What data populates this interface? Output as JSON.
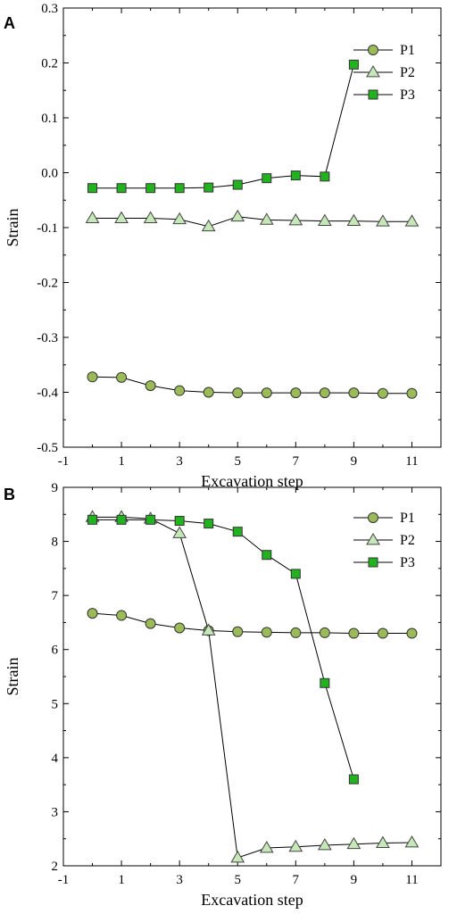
{
  "chart_data": [
    {
      "panel": "A",
      "type": "line",
      "xlabel": "Excavation step",
      "ylabel": "Strain",
      "xlim": [
        -1,
        12
      ],
      "ylim": [
        -0.5,
        0.3
      ],
      "xticks": [
        -1,
        1,
        3,
        5,
        7,
        9,
        11
      ],
      "yticks": [
        -0.5,
        -0.4,
        -0.3,
        -0.2,
        -0.1,
        0.0,
        0.1,
        0.2,
        0.3
      ],
      "ytick_labels": [
        "-0.5",
        "-0.4",
        "-0.3",
        "-0.2",
        "-0.1",
        "0.0",
        "0.1",
        "0.2",
        "0.3"
      ],
      "legend_position": "top-right",
      "series": [
        {
          "name": "P1",
          "marker": "circle",
          "color": "#9BBB59",
          "x": [
            0,
            1,
            2,
            3,
            4,
            5,
            6,
            7,
            8,
            9,
            10,
            11
          ],
          "y": [
            -0.372,
            -0.373,
            -0.388,
            -0.397,
            -0.4,
            -0.401,
            -0.401,
            -0.401,
            -0.401,
            -0.401,
            -0.402,
            -0.402
          ]
        },
        {
          "name": "P2",
          "marker": "triangle",
          "color": "#C6E7B8",
          "x": [
            0,
            1,
            2,
            3,
            4,
            5,
            6,
            7,
            8,
            9,
            10,
            11
          ],
          "y": [
            -0.083,
            -0.083,
            -0.083,
            -0.085,
            -0.098,
            -0.08,
            -0.086,
            -0.087,
            -0.088,
            -0.088,
            -0.089,
            -0.089
          ]
        },
        {
          "name": "P3",
          "marker": "square",
          "color": "#22B21F",
          "x": [
            0,
            1,
            2,
            3,
            4,
            5,
            6,
            7,
            8,
            9
          ],
          "y": [
            -0.028,
            -0.028,
            -0.028,
            -0.028,
            -0.027,
            -0.022,
            -0.01,
            -0.005,
            -0.007,
            0.197
          ]
        }
      ]
    },
    {
      "panel": "B",
      "type": "line",
      "xlabel": "Excavation step",
      "ylabel": "Strain",
      "xlim": [
        -1,
        12
      ],
      "ylim": [
        2,
        9
      ],
      "xticks": [
        -1,
        1,
        3,
        5,
        7,
        9,
        11
      ],
      "yticks": [
        2,
        3,
        4,
        5,
        6,
        7,
        8,
        9
      ],
      "ytick_labels": [
        "2",
        "3",
        "4",
        "5",
        "6",
        "7",
        "8",
        "9"
      ],
      "legend_position": "top-right",
      "series": [
        {
          "name": "P1",
          "marker": "circle",
          "color": "#9BBB59",
          "x": [
            0,
            1,
            2,
            3,
            4,
            5,
            6,
            7,
            8,
            9,
            10,
            11
          ],
          "y": [
            6.67,
            6.63,
            6.48,
            6.4,
            6.35,
            6.33,
            6.32,
            6.31,
            6.31,
            6.3,
            6.3,
            6.3
          ]
        },
        {
          "name": "P2",
          "marker": "triangle",
          "color": "#C6E7B8",
          "x": [
            0,
            1,
            2,
            3,
            4,
            5,
            6,
            7,
            8,
            9,
            10,
            11
          ],
          "y": [
            8.45,
            8.45,
            8.42,
            8.15,
            6.35,
            2.15,
            2.33,
            2.35,
            2.38,
            2.4,
            2.42,
            2.43
          ]
        },
        {
          "name": "P3",
          "marker": "square",
          "color": "#22B21F",
          "x": [
            0,
            1,
            2,
            3,
            4,
            5,
            6,
            7,
            8,
            9
          ],
          "y": [
            8.4,
            8.4,
            8.4,
            8.38,
            8.33,
            8.18,
            7.75,
            7.4,
            5.38,
            3.6
          ]
        }
      ]
    }
  ]
}
